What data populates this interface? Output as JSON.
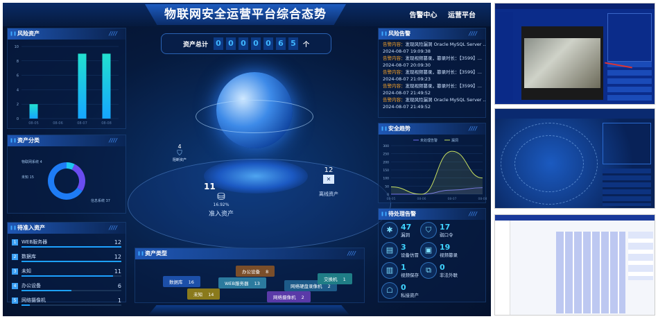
{
  "header": {
    "title": "物联网安全运营平台综合态势",
    "nav": [
      "告警中心",
      "运营平台"
    ]
  },
  "counter": {
    "label": "资产总计",
    "digits": [
      "0",
      "0",
      "0",
      "0",
      "0",
      "6",
      "5"
    ],
    "unit": "个"
  },
  "risk_assets": {
    "title": "风险资产",
    "chart_data": {
      "type": "bar",
      "categories": [
        "08-05",
        "08-06",
        "08-07",
        "08-08"
      ],
      "values": [
        2,
        0,
        9,
        9
      ],
      "ylim": [
        0,
        10
      ],
      "yticks": [
        0,
        2,
        4,
        6,
        8,
        10
      ],
      "grid": true,
      "color": "#1ec8e6"
    }
  },
  "asset_class": {
    "title": "资产分类",
    "chart_data": {
      "type": "pie",
      "donut": true,
      "slices": [
        {
          "label": "物联网系统",
          "value": 4,
          "color": "#1fc8f0"
        },
        {
          "label": "未知",
          "value": 15,
          "color": "#6a4cf0"
        },
        {
          "label": "信息系统",
          "value": 37,
          "color": "#1e7cf5"
        }
      ]
    }
  },
  "pending_assets": {
    "title": "待准入资产",
    "items": [
      {
        "rank": "1",
        "name": "WEB服务器",
        "value": 12
      },
      {
        "rank": "2",
        "name": "数据库",
        "value": 12
      },
      {
        "rank": "3",
        "name": "未知",
        "value": 11
      },
      {
        "rank": "4",
        "name": "办公设备",
        "value": 6
      },
      {
        "rank": "5",
        "name": "网络摄像机",
        "value": 1
      }
    ],
    "max": 12
  },
  "globe": {
    "blocked": {
      "value": "4",
      "label": "阻断资产"
    },
    "offline": {
      "value": "12",
      "label": "离线资产"
    },
    "admitted": {
      "value": "11",
      "label": "准入资产",
      "percent": "16.92%"
    }
  },
  "asset_types": {
    "title": "资产类型",
    "tags": [
      {
        "label": "数据库",
        "value": "16",
        "color": "#1c4fa8"
      },
      {
        "label": "未知",
        "value": "14",
        "color": "#8a7a1c"
      },
      {
        "label": "办公设备",
        "value": "8",
        "color": "#7a4e2a"
      },
      {
        "label": "WEB服务器",
        "value": "13",
        "color": "#2b7a9e"
      },
      {
        "label": "网络摄像机",
        "value": "2",
        "color": "#5a3aa8"
      },
      {
        "label": "网络硬盘录像机",
        "value": "2",
        "color": "#1d5a88"
      },
      {
        "label": "交换机",
        "value": "1",
        "color": "#1f7d86"
      }
    ]
  },
  "risk_alerts": {
    "title": "风险告警",
    "key": "告警内容：",
    "items": [
      {
        "content": "发现风险漏洞 Oracle MySQL Server ...",
        "time": "2024-08-07 19:09:38"
      },
      {
        "content": "发现视频篡录，篡录时长：【3599】...",
        "time": "2024-08-07 20:09:30"
      },
      {
        "content": "发现视频篡录，篡录时长：【3599】...",
        "time": "2024-08-07 21:09:23"
      },
      {
        "content": "发现视频篡录，篡录时长：【3599】...",
        "time": "2024-08-07 21:49:52"
      },
      {
        "content": "发现风险漏洞 Oracle MySQL Server ...",
        "time": "2024-08-07 21:49:52"
      }
    ]
  },
  "security_trend": {
    "title": "安全趋势",
    "chart_data": {
      "type": "line",
      "x": [
        "08-05",
        "08-06",
        "08-07",
        "08-08"
      ],
      "ylim": [
        0,
        300
      ],
      "yticks": [
        0,
        50,
        100,
        150,
        200,
        250,
        300
      ],
      "legend": "top",
      "series": [
        {
          "name": "未处理告警",
          "values": [
            0,
            0,
            25,
            40
          ],
          "color": "#6f6ff0"
        },
        {
          "name": "漏洞",
          "values": [
            45,
            0,
            265,
            100
          ],
          "color": "#c8e060"
        }
      ]
    }
  },
  "pending_alerts": {
    "title": "待处理告警",
    "items": [
      {
        "icon": "bug-icon",
        "value": "47",
        "label": "漏洞"
      },
      {
        "icon": "shield-icon",
        "value": "17",
        "label": "弱口令"
      },
      {
        "icon": "device-icon",
        "value": "3",
        "label": "设备仿冒"
      },
      {
        "icon": "video-icon",
        "value": "19",
        "label": "视频篡录"
      },
      {
        "icon": "save-icon",
        "value": "1",
        "label": "视频保存"
      },
      {
        "icon": "link-icon",
        "value": "0",
        "label": "非法外联"
      },
      {
        "icon": "router-icon",
        "value": "0",
        "label": "私接资产"
      }
    ]
  }
}
